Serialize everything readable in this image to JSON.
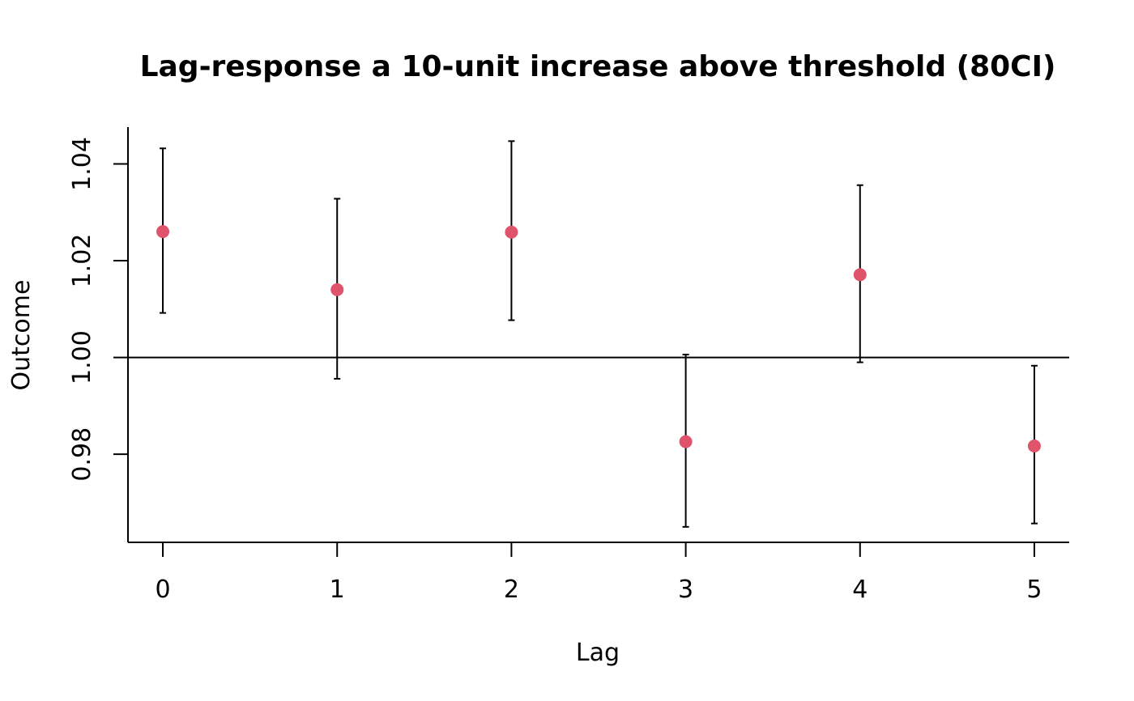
{
  "chart_data": {
    "type": "scatter",
    "title": "Lag-response a 10-unit increase above threshold (80CI)",
    "xlabel": "Lag",
    "ylabel": "Outcome",
    "x": [
      0,
      1,
      2,
      3,
      4,
      5
    ],
    "x_tick_labels": [
      "0",
      "1",
      "2",
      "3",
      "4",
      "5"
    ],
    "y_tick_labels": [
      "0.98",
      "1.00",
      "1.02",
      "1.04"
    ],
    "y_ticks": [
      0.98,
      1.0,
      1.02,
      1.04
    ],
    "xlim": [
      -0.2,
      5.2
    ],
    "ylim": [
      0.9618,
      1.0476
    ],
    "reference_line": 1.0,
    "series": [
      {
        "estimate": [
          1.026,
          1.014,
          1.0259,
          0.9826,
          1.0171,
          0.9817
        ],
        "lower": [
          1.0092,
          0.9956,
          1.0077,
          0.965,
          0.999,
          0.9657
        ],
        "upper": [
          1.0432,
          1.0328,
          1.0447,
          1.0006,
          1.0356,
          0.9983
        ]
      }
    ],
    "point_color": "#DF536B",
    "line_color": "#000000",
    "grid": false
  }
}
